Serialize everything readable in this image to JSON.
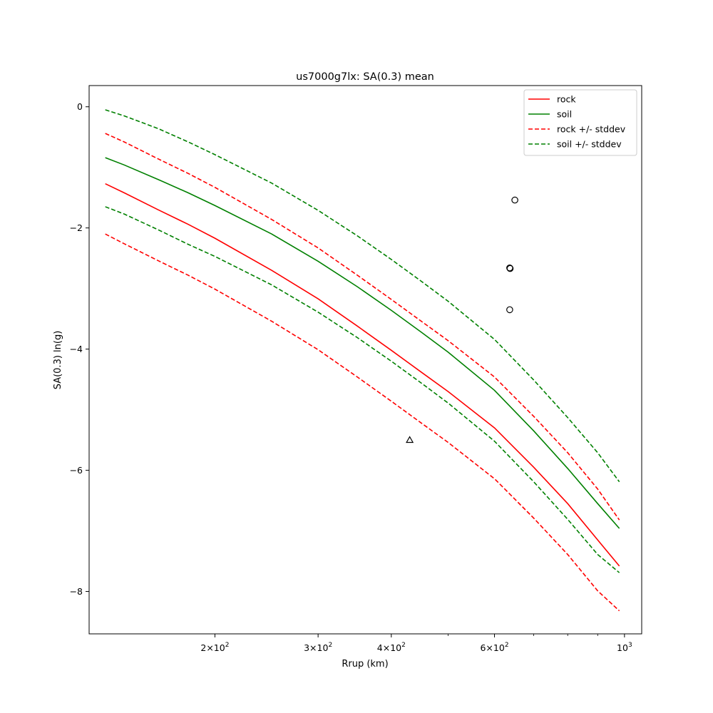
{
  "chart_data": {
    "type": "line",
    "title": "us7000g7lx: SA(0.3) mean",
    "xlabel": "Rrup (km)",
    "ylabel": "SA(0.3) ln(g)",
    "xscale": "log",
    "xlim": [
      122,
      1070
    ],
    "ylim": [
      -8.7,
      0.35
    ],
    "grid": false,
    "legend_position": "top-right",
    "x_ticks": [
      {
        "value": 200,
        "label": "2 × 10^2"
      },
      {
        "value": 300,
        "label": "3 × 10^2"
      },
      {
        "value": 400,
        "label": "4 × 10^2"
      },
      {
        "value": 600,
        "label": "6 × 10^2"
      },
      {
        "value": 1000,
        "label": "10^3"
      }
    ],
    "x_minor_ticks": [
      500,
      700,
      800,
      900
    ],
    "y_ticks": [
      {
        "value": 0,
        "label": "0"
      },
      {
        "value": -2,
        "label": "−2"
      },
      {
        "value": -4,
        "label": "−4"
      },
      {
        "value": -6,
        "label": "−6"
      },
      {
        "value": -8,
        "label": "−8"
      }
    ],
    "x": [
      130,
      140,
      160,
      180,
      200,
      250,
      300,
      350,
      400,
      450,
      500,
      600,
      700,
      800,
      900,
      980
    ],
    "series": [
      {
        "name": "rock",
        "color": "#ff0000",
        "dash": "solid",
        "values": [
          -1.27,
          -1.42,
          -1.7,
          -1.94,
          -2.17,
          -2.7,
          -3.17,
          -3.62,
          -4.02,
          -4.38,
          -4.7,
          -5.3,
          -5.95,
          -6.55,
          -7.15,
          -7.58
        ]
      },
      {
        "name": "soil",
        "color": "#008000",
        "dash": "solid",
        "values": [
          -0.84,
          -0.96,
          -1.2,
          -1.42,
          -1.63,
          -2.1,
          -2.55,
          -2.97,
          -3.36,
          -3.72,
          -4.05,
          -4.68,
          -5.35,
          -5.97,
          -6.55,
          -6.96
        ]
      },
      {
        "name": "rock +/- stddev",
        "color": "#ff0000",
        "dash": "dashed",
        "values": [
          -0.44,
          -0.58,
          -0.86,
          -1.1,
          -1.33,
          -1.86,
          -2.33,
          -2.78,
          -3.18,
          -3.54,
          -3.86,
          -4.46,
          -5.11,
          -5.71,
          -6.31,
          -6.82
        ]
      },
      {
        "name": "",
        "color": "#ff0000",
        "dash": "dashed",
        "values": [
          -2.1,
          -2.26,
          -2.54,
          -2.78,
          -3.01,
          -3.54,
          -4.01,
          -4.46,
          -4.86,
          -5.22,
          -5.54,
          -6.14,
          -6.79,
          -7.39,
          -7.99,
          -8.32
        ]
      },
      {
        "name": "soil +/- stddev",
        "color": "#008000",
        "dash": "dashed",
        "values": [
          -0.05,
          -0.15,
          -0.36,
          -0.58,
          -0.79,
          -1.26,
          -1.71,
          -2.13,
          -2.52,
          -2.88,
          -3.21,
          -3.84,
          -4.51,
          -5.13,
          -5.71,
          -6.19
        ]
      },
      {
        "name": "",
        "color": "#008000",
        "dash": "dashed",
        "values": [
          -1.65,
          -1.77,
          -2.03,
          -2.27,
          -2.47,
          -2.94,
          -3.39,
          -3.81,
          -4.2,
          -4.56,
          -4.89,
          -5.52,
          -6.19,
          -6.81,
          -7.39,
          -7.69
        ]
      }
    ],
    "observations": [
      {
        "marker": "circle",
        "x": 650,
        "y": -1.54
      },
      {
        "marker": "circle",
        "x": 637,
        "y": -2.66
      },
      {
        "marker": "circle",
        "x": 638,
        "y": -2.67
      },
      {
        "marker": "circle",
        "x": 637,
        "y": -3.35
      },
      {
        "marker": "triangle",
        "x": 430,
        "y": -5.5
      }
    ]
  }
}
